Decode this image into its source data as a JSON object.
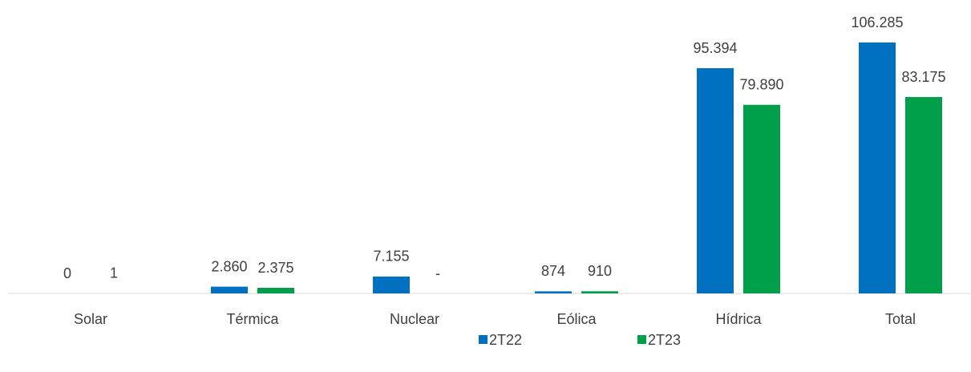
{
  "chart_data": {
    "type": "bar",
    "categories": [
      "Solar",
      "Térmica",
      "Nuclear",
      "Eólica",
      "Hídrica",
      "Total"
    ],
    "series": [
      {
        "name": "2T22",
        "color": "#0070c0",
        "values": [
          0,
          2860,
          7155,
          874,
          95394,
          106285
        ],
        "value_labels": [
          "0",
          "2.860",
          "7.155",
          "874",
          "95.394",
          "106.285"
        ]
      },
      {
        "name": "2T23",
        "color": "#00a04b",
        "values": [
          1,
          2375,
          0,
          910,
          79890,
          83175
        ],
        "value_labels": [
          "1",
          "2.375",
          "-",
          "910",
          "79.890",
          "83.175"
        ]
      }
    ],
    "legend": "bottom"
  }
}
